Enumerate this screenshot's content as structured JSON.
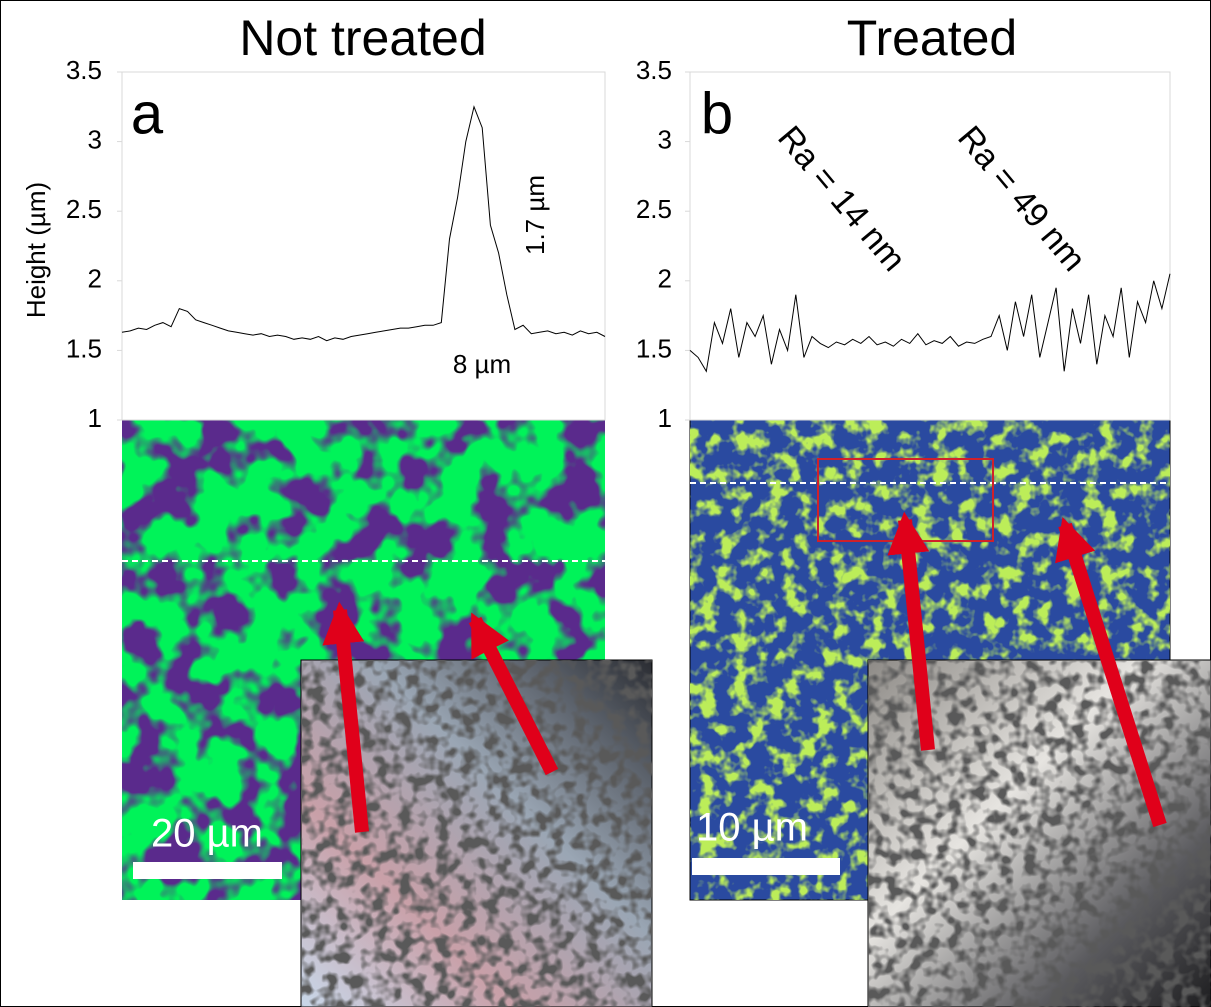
{
  "chart_data": [
    {
      "type": "line",
      "title": "Not treated",
      "ylabel": "Height (µm)",
      "color": "#000000",
      "ylim": [
        1,
        3.5
      ],
      "yticks": [
        1,
        1.5,
        2,
        2.5,
        3,
        3.5
      ],
      "annotations": [
        "a",
        "1.7 µm",
        "8 µm",
        "20 µm"
      ],
      "values": [
        1.63,
        1.64,
        1.66,
        1.65,
        1.68,
        1.7,
        1.67,
        1.8,
        1.78,
        1.72,
        1.7,
        1.68,
        1.66,
        1.64,
        1.63,
        1.62,
        1.61,
        1.62,
        1.6,
        1.61,
        1.6,
        1.58,
        1.59,
        1.58,
        1.6,
        1.57,
        1.59,
        1.58,
        1.6,
        1.61,
        1.62,
        1.63,
        1.64,
        1.65,
        1.66,
        1.66,
        1.67,
        1.68,
        1.68,
        1.7,
        2.3,
        2.6,
        3.0,
        3.25,
        3.1,
        2.4,
        2.2,
        1.9,
        1.65,
        1.68,
        1.62,
        1.63,
        1.64,
        1.62,
        1.63,
        1.61,
        1.64,
        1.62,
        1.63,
        1.6
      ]
    },
    {
      "type": "line",
      "title": "Treated",
      "color": "#000000",
      "ylim": [
        1,
        3.5
      ],
      "yticks": [
        1,
        1.5,
        2,
        2.5,
        3,
        3.5
      ],
      "annotations": [
        "b",
        "Ra = 14 nm",
        "Ra = 49 nm",
        "10 µm"
      ],
      "values": [
        1.5,
        1.45,
        1.35,
        1.7,
        1.55,
        1.8,
        1.45,
        1.7,
        1.6,
        1.75,
        1.4,
        1.65,
        1.5,
        1.9,
        1.45,
        1.6,
        1.55,
        1.52,
        1.56,
        1.54,
        1.58,
        1.55,
        1.6,
        1.54,
        1.56,
        1.53,
        1.58,
        1.55,
        1.62,
        1.54,
        1.57,
        1.55,
        1.6,
        1.53,
        1.56,
        1.55,
        1.58,
        1.6,
        1.75,
        1.5,
        1.85,
        1.6,
        1.9,
        1.45,
        1.7,
        1.95,
        1.35,
        1.8,
        1.55,
        1.9,
        1.4,
        1.75,
        1.6,
        1.95,
        1.45,
        1.85,
        1.7,
        2.0,
        1.8,
        2.05
      ]
    }
  ]
}
